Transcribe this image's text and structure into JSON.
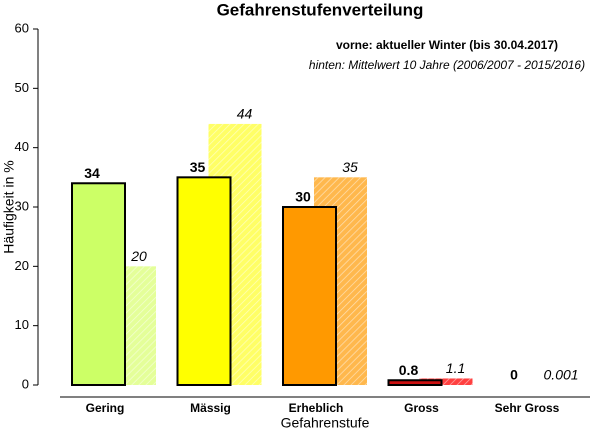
{
  "chart_data": {
    "type": "bar",
    "title": "Gefahrenstufenverteilung",
    "x_label": "Gefahrenstufe",
    "y_label": "Häufigkeit in %",
    "legend_texts": [
      "vorne: aktueller Winter (bis 30.04.2017)",
      "hinten: Mittelwert 10 Jahre (2006/2007 - 2015/2016)"
    ],
    "categories": [
      "Gering",
      "Mässig",
      "Erheblich",
      "Gross",
      "Sehr Gross"
    ],
    "series": [
      {
        "values": [
          20,
          44,
          35,
          1.1,
          0.001
        ],
        "colors": [
          "#e4ff99",
          "#ffff66",
          "#ffb84d",
          "#ff4040",
          "#cccccc"
        ]
      },
      {
        "values": [
          34,
          35,
          30,
          0.8,
          0
        ],
        "colors": [
          "#ccff66",
          "#ffff00",
          "#ff9900",
          "#cc1111",
          "#222222"
        ]
      }
    ],
    "ylim": [
      0,
      60
    ],
    "yticks": [
      0,
      10,
      20,
      30,
      40,
      50,
      60
    ]
  }
}
